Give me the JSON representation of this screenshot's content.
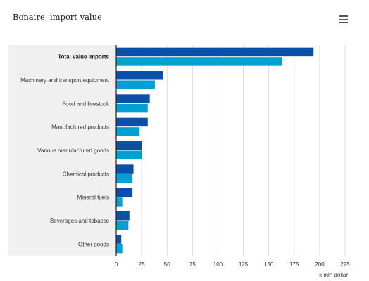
{
  "header": {
    "title": "Bonaire, import value",
    "menu_icon": "hamburger-menu-icon"
  },
  "chart_data": {
    "type": "bar",
    "orientation": "horizontal",
    "title": "Bonaire, import value",
    "unit_label": "x mln dollar",
    "categories": [
      "Total value imports",
      "Machinery and transport equipment",
      "Food and livestock",
      "Manufactured products",
      "Various manufactured goods",
      "Chemical products",
      "Mineral fuels",
      "Beverages and tobacco",
      "Other goods"
    ],
    "bold_categories": [
      "Total value imports"
    ],
    "series": [
      {
        "values": [
          194,
          46,
          33,
          31,
          25,
          17,
          16,
          13,
          5
        ],
        "color": "#0a4fa8"
      },
      {
        "values": [
          163,
          38,
          31,
          23,
          25,
          16,
          6,
          12,
          6
        ],
        "color": "#00a0d2"
      }
    ],
    "xlim": [
      0,
      225
    ],
    "xticks": [
      0,
      25,
      50,
      75,
      100,
      125,
      150,
      175,
      200,
      225
    ],
    "grid": true,
    "highlight_band_color": "#f0f0f0",
    "gridline_color": "#dddddd",
    "axis_color": "#222222"
  }
}
